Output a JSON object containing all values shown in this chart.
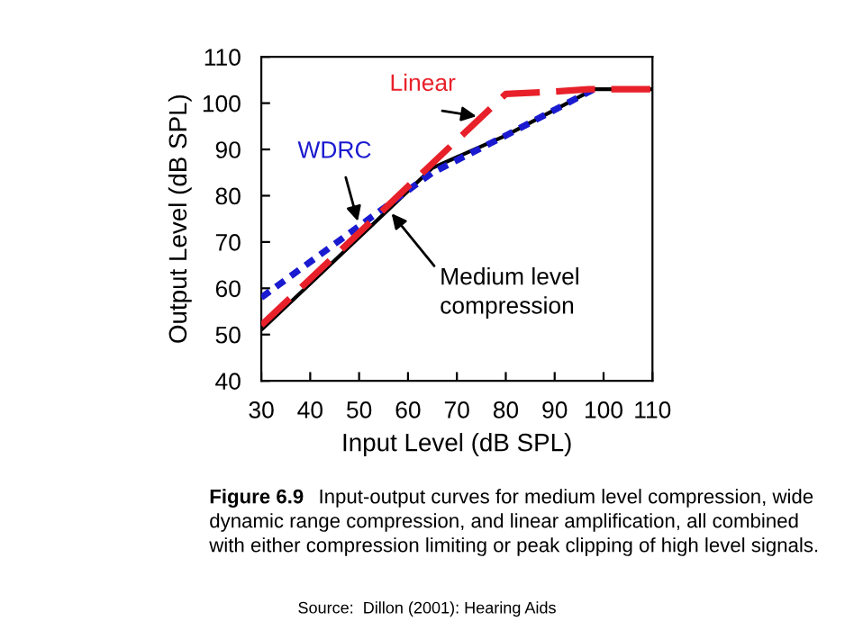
{
  "chart_data": {
    "type": "line",
    "xlabel": "Input Level (dB SPL)",
    "ylabel": "Output Level (dB SPL)",
    "xlim": [
      30,
      110
    ],
    "ylim": [
      40,
      110
    ],
    "xticks": [
      30,
      40,
      50,
      60,
      70,
      80,
      90,
      100,
      110
    ],
    "yticks": [
      40,
      50,
      60,
      70,
      80,
      90,
      100,
      110
    ],
    "grid": false,
    "legend": false,
    "marker": "none",
    "series": [
      {
        "name": "Linear",
        "color": "#e8202a",
        "line_style": "dashed",
        "x": [
          30,
          80,
          90,
          97,
          110
        ],
        "values": [
          52,
          102,
          102.5,
          103,
          103
        ]
      },
      {
        "name": "WDRC",
        "color": "#1a1ad0",
        "line_style": "dotted",
        "x": [
          30,
          65,
          80,
          98
        ],
        "values": [
          58,
          85,
          93,
          103
        ]
      },
      {
        "name": "Medium level compression",
        "color": "#000000",
        "line_style": "solid",
        "x": [
          30,
          65,
          80,
          98,
          110
        ],
        "values": [
          51,
          86,
          93,
          103,
          103
        ]
      }
    ],
    "annotations": [
      "Figure 6.9",
      "Input-output curves for medium level compression, wide dynamic range compression, and linear amplification, all combined with either compression limiting or peak clipping of high level signals.",
      "Source:  Dillon (2001): Hearing Aids"
    ]
  }
}
